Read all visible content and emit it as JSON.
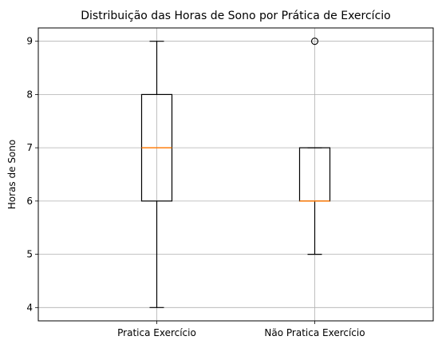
{
  "chart_data": {
    "type": "boxplot",
    "title": "Distribuição das Horas de Sono por Prática de Exercício",
    "xlabel": "",
    "ylabel": "Horas de Sono",
    "ylim": [
      3.75,
      9.25
    ],
    "yticks": [
      "4",
      "5",
      "6",
      "7",
      "8",
      "9"
    ],
    "grid": true,
    "categories": [
      "Pratica Exercício",
      "Não Pratica Exercício"
    ],
    "boxes": [
      {
        "whisker_low": 4,
        "q1": 6,
        "median": 7,
        "q3": 8,
        "whisker_high": 9,
        "outliers": []
      },
      {
        "whisker_low": 5,
        "q1": 6,
        "median": 6,
        "q3": 7,
        "whisker_high": 7,
        "outliers": [
          9
        ]
      }
    ],
    "colors": {
      "box": "#000000",
      "median": "#ff7f0e",
      "grid": "#b0b0b0"
    }
  }
}
